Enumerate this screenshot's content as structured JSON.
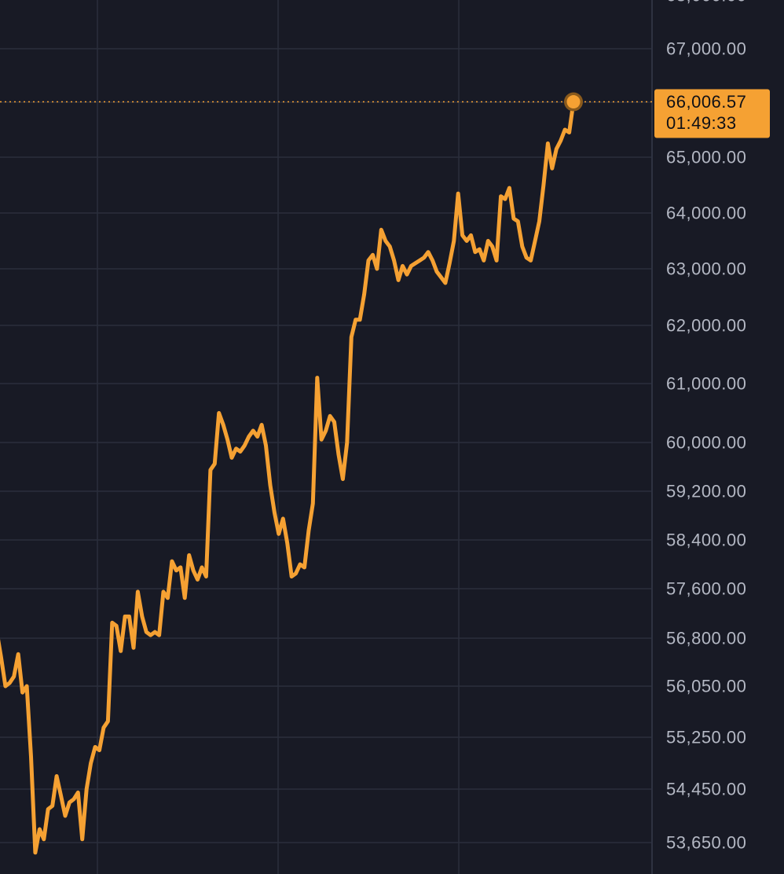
{
  "chart_data": {
    "type": "line",
    "y_axis_position": "right",
    "ylim": [
      53400,
      67900
    ],
    "y_tick_labels": [
      {
        "value": 67000,
        "label": "67,000.00"
      },
      {
        "value": 66000,
        "label": "66,000.00"
      },
      {
        "value": 65000,
        "label": "65,000.00"
      },
      {
        "value": 64000,
        "label": "64,000.00"
      },
      {
        "value": 63000,
        "label": "63,000.00"
      },
      {
        "value": 62000,
        "label": "62,000.00"
      },
      {
        "value": 61000,
        "label": "61,000.00"
      },
      {
        "value": 60000,
        "label": "60,000.00"
      },
      {
        "value": 59200,
        "label": "59,200.00"
      },
      {
        "value": 58400,
        "label": "58,400.00"
      },
      {
        "value": 57600,
        "label": "57,600.00"
      },
      {
        "value": 56800,
        "label": "56,800.00"
      },
      {
        "value": 56050,
        "label": "56,050.00"
      },
      {
        "value": 55250,
        "label": "55,250.00"
      },
      {
        "value": 54450,
        "label": "54,450.00"
      },
      {
        "value": 53650,
        "label": "53,650.00"
      }
    ],
    "grid": true,
    "vertical_gridlines": 3,
    "series": [
      {
        "color": "#f5a133",
        "values": [
          56900,
          56500,
          56050,
          56100,
          56200,
          56550,
          55950,
          56050,
          54950,
          53500,
          53850,
          53700,
          54150,
          54200,
          54650,
          54350,
          54050,
          54250,
          54300,
          54400,
          53700,
          54450,
          54850,
          55100,
          55050,
          55400,
          55500,
          57050,
          57000,
          56600,
          57150,
          57150,
          56650,
          57550,
          57150,
          56900,
          56850,
          56900,
          56850,
          57550,
          57450,
          58050,
          57900,
          57950,
          57450,
          58150,
          57900,
          57750,
          57950,
          57800,
          59550,
          59650,
          60500,
          60300,
          60050,
          59750,
          59900,
          59850,
          59950,
          60100,
          60200,
          60100,
          60300,
          59950,
          59300,
          58850,
          58500,
          58750,
          58350,
          57800,
          57850,
          58000,
          57950,
          58550,
          59000,
          61100,
          60050,
          60200,
          60450,
          60350,
          59800,
          59400,
          60000,
          61800,
          62100,
          62100,
          62550,
          63150,
          63250,
          63000,
          63700,
          63500,
          63400,
          63150,
          62800,
          63050,
          62900,
          63050,
          63100,
          63150,
          63200,
          63300,
          63150,
          62950,
          62850,
          62750,
          63100,
          63500,
          64350,
          63600,
          63500,
          63600,
          63300,
          63350,
          63150,
          63500,
          63400,
          63150,
          64300,
          64250,
          64450,
          63900,
          63850,
          63400,
          63200,
          63150,
          63500,
          63850,
          64500,
          65250,
          64800,
          65150,
          65300,
          65500,
          65450,
          66006.57
        ]
      }
    ],
    "current_price": {
      "value": 66006.57,
      "label": "66,006.57",
      "countdown": "01:49:33"
    },
    "colors": {
      "background": "#181a25",
      "line": "#f5a133",
      "grid": "#2a2e3c",
      "tick_text": "#b4b8c4",
      "badge_bg": "#f5a133",
      "badge_text": "#0f1016",
      "marker_halo": "#8a5a1c"
    }
  }
}
